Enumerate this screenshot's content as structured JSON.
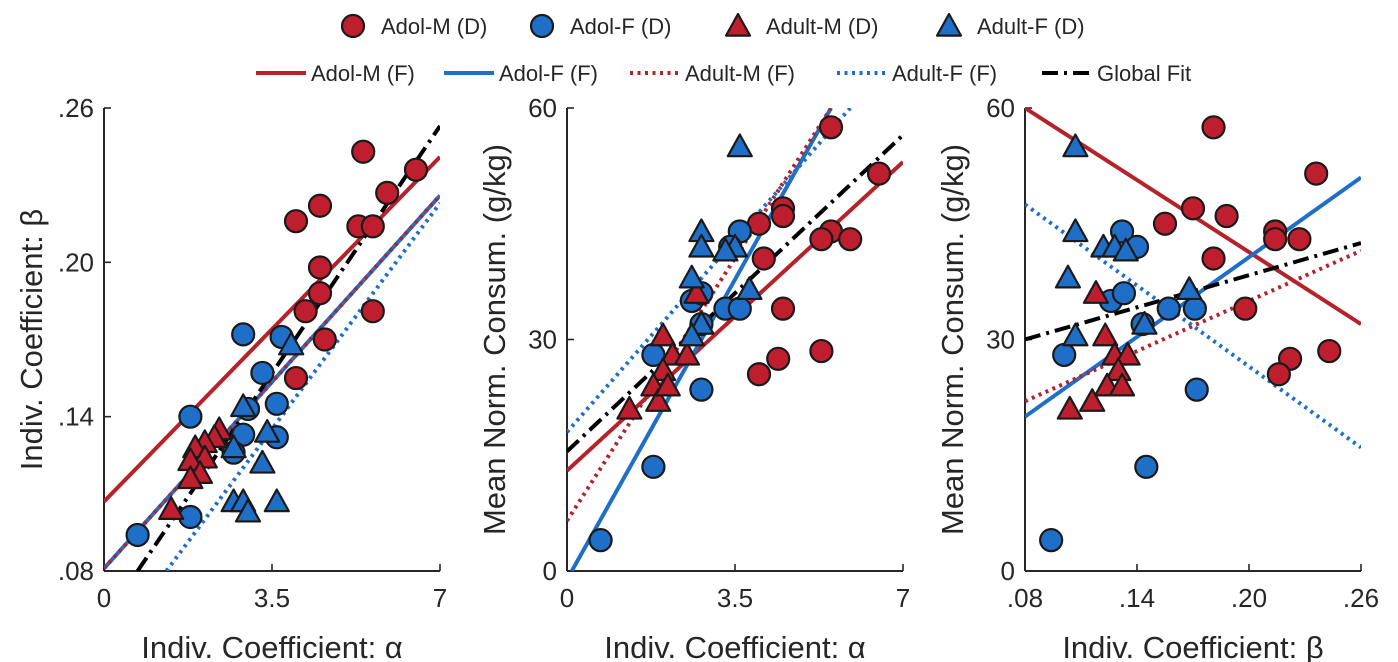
{
  "legend": {
    "markers": [
      {
        "label": "Adol-M (D)",
        "shape": "circle",
        "color": "#BE1E2D"
      },
      {
        "label": "Adol-F (D)",
        "shape": "circle",
        "color": "#1F6FC9"
      },
      {
        "label": "Adult-M (D)",
        "shape": "triangle",
        "color": "#BE1E2D"
      },
      {
        "label": "Adult-F (D)",
        "shape": "triangle",
        "color": "#1F6FC9"
      }
    ],
    "lines": [
      {
        "label": "Adol-M (F)",
        "style": "solid",
        "color": "#B5222A"
      },
      {
        "label": "Adol-F (F)",
        "style": "solid",
        "color": "#1F6FC9"
      },
      {
        "label": "Adult-M (F)",
        "style": "dotted",
        "color": "#B5222A"
      },
      {
        "label": "Adult-F (F)",
        "style": "dotted",
        "color": "#1F6FC9"
      },
      {
        "label": "Global Fit",
        "style": "dashdot",
        "color": "#000000"
      }
    ]
  },
  "chart_data": [
    {
      "type": "scatter",
      "xlabel": "Indiv. Coefficient: α",
      "ylabel": "Indiv. Coefficient: β",
      "xlim": [
        0,
        7
      ],
      "ylim": [
        0.08,
        0.26
      ],
      "xticks": [
        "0",
        "3.5",
        "7"
      ],
      "yticks": [
        ".08",
        ".14",
        ".20",
        ".26"
      ],
      "series": [
        {
          "name": "Adol-M (D)",
          "points": [
            [
              5.4,
              0.243
            ],
            [
              6.5,
              0.236
            ],
            [
              5.9,
              0.227
            ],
            [
              4.5,
              0.222
            ],
            [
              4.0,
              0.216
            ],
            [
              5.3,
              0.214
            ],
            [
              5.6,
              0.214
            ],
            [
              4.5,
              0.198
            ],
            [
              4.5,
              0.188
            ],
            [
              4.2,
              0.181
            ],
            [
              5.6,
              0.181
            ],
            [
              4.6,
              0.17
            ],
            [
              4.0,
              0.155
            ]
          ]
        },
        {
          "name": "Adol-F (D)",
          "points": [
            [
              2.9,
              0.172
            ],
            [
              3.7,
              0.171
            ],
            [
              3.3,
              0.157
            ],
            [
              3.6,
              0.145
            ],
            [
              3.6,
              0.132
            ],
            [
              2.9,
              0.133
            ],
            [
              3.0,
              0.143
            ],
            [
              1.8,
              0.14
            ],
            [
              1.8,
              0.101
            ],
            [
              0.7,
              0.094
            ],
            [
              2.7,
              0.126
            ]
          ]
        },
        {
          "name": "Adult-M (D)",
          "points": [
            [
              2.4,
              0.135
            ],
            [
              2.3,
              0.132
            ],
            [
              2.1,
              0.13
            ],
            [
              1.9,
              0.128
            ],
            [
              2.1,
              0.124
            ],
            [
              1.8,
              0.123
            ],
            [
              2.0,
              0.118
            ],
            [
              1.8,
              0.116
            ],
            [
              1.4,
              0.104
            ]
          ]
        },
        {
          "name": "Adult-F (D)",
          "points": [
            [
              3.9,
              0.168
            ],
            [
              2.9,
              0.144
            ],
            [
              3.4,
              0.134
            ],
            [
              2.7,
              0.128
            ],
            [
              3.3,
              0.122
            ],
            [
              2.7,
              0.107
            ],
            [
              2.9,
              0.107
            ],
            [
              3.0,
              0.103
            ],
            [
              3.6,
              0.107
            ]
          ]
        },
        {
          "name": "Adol-M (F)",
          "line": [
            [
              0,
              0.107
            ],
            [
              7,
              0.241
            ]
          ]
        },
        {
          "name": "Adol-F (F)",
          "line": [
            [
              0,
              0.081
            ],
            [
              7,
              0.226
            ]
          ]
        },
        {
          "name": "Adult-M (F)",
          "line": [
            [
              0,
              0.081
            ],
            [
              7,
              0.226
            ]
          ]
        },
        {
          "name": "Adult-F (F)",
          "line": [
            [
              1.3,
              0.08
            ],
            [
              7,
              0.223
            ]
          ]
        },
        {
          "name": "Global Fit",
          "line": [
            [
              0.7,
              0.08
            ],
            [
              7,
              0.253
            ]
          ]
        }
      ]
    },
    {
      "type": "scatter",
      "xlabel": "Indiv. Coefficient: α",
      "ylabel": "Mean Norm. Consum. (g/kg)",
      "xlim": [
        0,
        7
      ],
      "ylim": [
        0,
        60
      ],
      "xticks": [
        "0",
        "3.5",
        "7"
      ],
      "yticks": [
        "0",
        "30",
        "60"
      ],
      "series": [
        {
          "name": "Adol-M (D)",
          "points": [
            [
              5.5,
              57.5
            ],
            [
              6.5,
              51.5
            ],
            [
              4.5,
              47.0
            ],
            [
              4.5,
              46.0
            ],
            [
              4.0,
              45.0
            ],
            [
              5.5,
              44.0
            ],
            [
              5.9,
              43.0
            ],
            [
              5.3,
              43.0
            ],
            [
              4.1,
              40.5
            ],
            [
              4.5,
              34.0
            ],
            [
              4.4,
              27.5
            ],
            [
              5.3,
              28.5
            ],
            [
              4.0,
              25.5
            ]
          ]
        },
        {
          "name": "Adol-F (D)",
          "points": [
            [
              3.6,
              44.0
            ],
            [
              3.4,
              42.0
            ],
            [
              3.3,
              34.0
            ],
            [
              3.6,
              34.0
            ],
            [
              2.6,
              35.0
            ],
            [
              2.8,
              36.0
            ],
            [
              2.8,
              32.0
            ],
            [
              1.8,
              28.0
            ],
            [
              2.8,
              23.5
            ],
            [
              1.8,
              13.5
            ],
            [
              0.7,
              4.0
            ]
          ]
        },
        {
          "name": "Adult-M (D)",
          "points": [
            [
              2.0,
              30.5
            ],
            [
              2.2,
              28.0
            ],
            [
              2.5,
              28.0
            ],
            [
              2.0,
              26.0
            ],
            [
              1.8,
              24.0
            ],
            [
              1.9,
              22.0
            ],
            [
              2.1,
              24.0
            ],
            [
              2.7,
              36.0
            ],
            [
              1.3,
              21.0
            ]
          ]
        },
        {
          "name": "Adult-F (D)",
          "points": [
            [
              3.6,
              55.0
            ],
            [
              2.8,
              44.0
            ],
            [
              3.5,
              42.0
            ],
            [
              3.3,
              41.5
            ],
            [
              2.8,
              42.0
            ],
            [
              2.6,
              38.0
            ],
            [
              3.8,
              36.5
            ],
            [
              2.8,
              32.0
            ],
            [
              2.6,
              30.5
            ]
          ]
        },
        {
          "name": "Adol-M (F)",
          "line": [
            [
              0,
              13.0
            ],
            [
              7,
              53.0
            ]
          ]
        },
        {
          "name": "Adol-F (F)",
          "line": [
            [
              0.1,
              0.0
            ],
            [
              5.5,
              60.0
            ]
          ]
        },
        {
          "name": "Adult-M (F)",
          "line": [
            [
              0,
              6.5
            ],
            [
              5.5,
              60.0
            ]
          ]
        },
        {
          "name": "Adult-F (F)",
          "line": [
            [
              0,
              18.0
            ],
            [
              5.9,
              60.0
            ]
          ]
        },
        {
          "name": "Global Fit",
          "line": [
            [
              0,
              15.5
            ],
            [
              7,
              56.5
            ]
          ]
        }
      ]
    },
    {
      "type": "scatter",
      "xlabel": "Indiv. Coefficient: β",
      "ylabel": "Mean Norm. Consum. (g/kg)",
      "xlim": [
        0.08,
        0.26
      ],
      "ylim": [
        0,
        60
      ],
      "xticks": [
        ".08",
        ".14",
        ".20",
        ".26"
      ],
      "yticks": [
        "0",
        "30",
        "60"
      ],
      "series": [
        {
          "name": "Adol-M (D)",
          "points": [
            [
              0.181,
              57.5
            ],
            [
              0.236,
              51.5
            ],
            [
              0.17,
              47.0
            ],
            [
              0.188,
              46.0
            ],
            [
              0.155,
              45.0
            ],
            [
              0.214,
              44.0
            ],
            [
              0.227,
              43.0
            ],
            [
              0.214,
              43.0
            ],
            [
              0.181,
              40.5
            ],
            [
              0.198,
              34.0
            ],
            [
              0.222,
              27.5
            ],
            [
              0.243,
              28.5
            ],
            [
              0.216,
              25.5
            ]
          ]
        },
        {
          "name": "Adol-F (D)",
          "points": [
            [
              0.132,
              44.0
            ],
            [
              0.14,
              42.0
            ],
            [
              0.157,
              34.0
            ],
            [
              0.171,
              34.0
            ],
            [
              0.126,
              35.0
            ],
            [
              0.133,
              36.0
            ],
            [
              0.143,
              32.0
            ],
            [
              0.101,
              28.0
            ],
            [
              0.172,
              23.5
            ],
            [
              0.145,
              13.5
            ],
            [
              0.094,
              4.0
            ]
          ]
        },
        {
          "name": "Adult-M (D)",
          "points": [
            [
              0.123,
              30.5
            ],
            [
              0.128,
              28.0
            ],
            [
              0.135,
              28.0
            ],
            [
              0.13,
              26.0
            ],
            [
              0.124,
              24.0
            ],
            [
              0.116,
              22.0
            ],
            [
              0.132,
              24.0
            ],
            [
              0.118,
              36.0
            ],
            [
              0.104,
              21.0
            ]
          ]
        },
        {
          "name": "Adult-F (D)",
          "points": [
            [
              0.107,
              55.0
            ],
            [
              0.107,
              44.0
            ],
            [
              0.122,
              42.0
            ],
            [
              0.128,
              42.0
            ],
            [
              0.134,
              41.5
            ],
            [
              0.103,
              38.0
            ],
            [
              0.168,
              36.5
            ],
            [
              0.144,
              32.0
            ],
            [
              0.107,
              30.5
            ]
          ]
        },
        {
          "name": "Adol-M (F)",
          "line": [
            [
              0.08,
              60.0
            ],
            [
              0.26,
              32.0
            ]
          ]
        },
        {
          "name": "Adol-F (F)",
          "line": [
            [
              0.08,
              20.0
            ],
            [
              0.26,
              51.0
            ]
          ]
        },
        {
          "name": "Adult-M (F)",
          "line": [
            [
              0.08,
              22.0
            ],
            [
              0.26,
              41.5
            ]
          ]
        },
        {
          "name": "Adult-F (F)",
          "line": [
            [
              0.08,
              47.5
            ],
            [
              0.26,
              16.0
            ]
          ]
        },
        {
          "name": "Global Fit",
          "line": [
            [
              0.08,
              30.0
            ],
            [
              0.26,
              42.5
            ]
          ]
        }
      ]
    }
  ]
}
